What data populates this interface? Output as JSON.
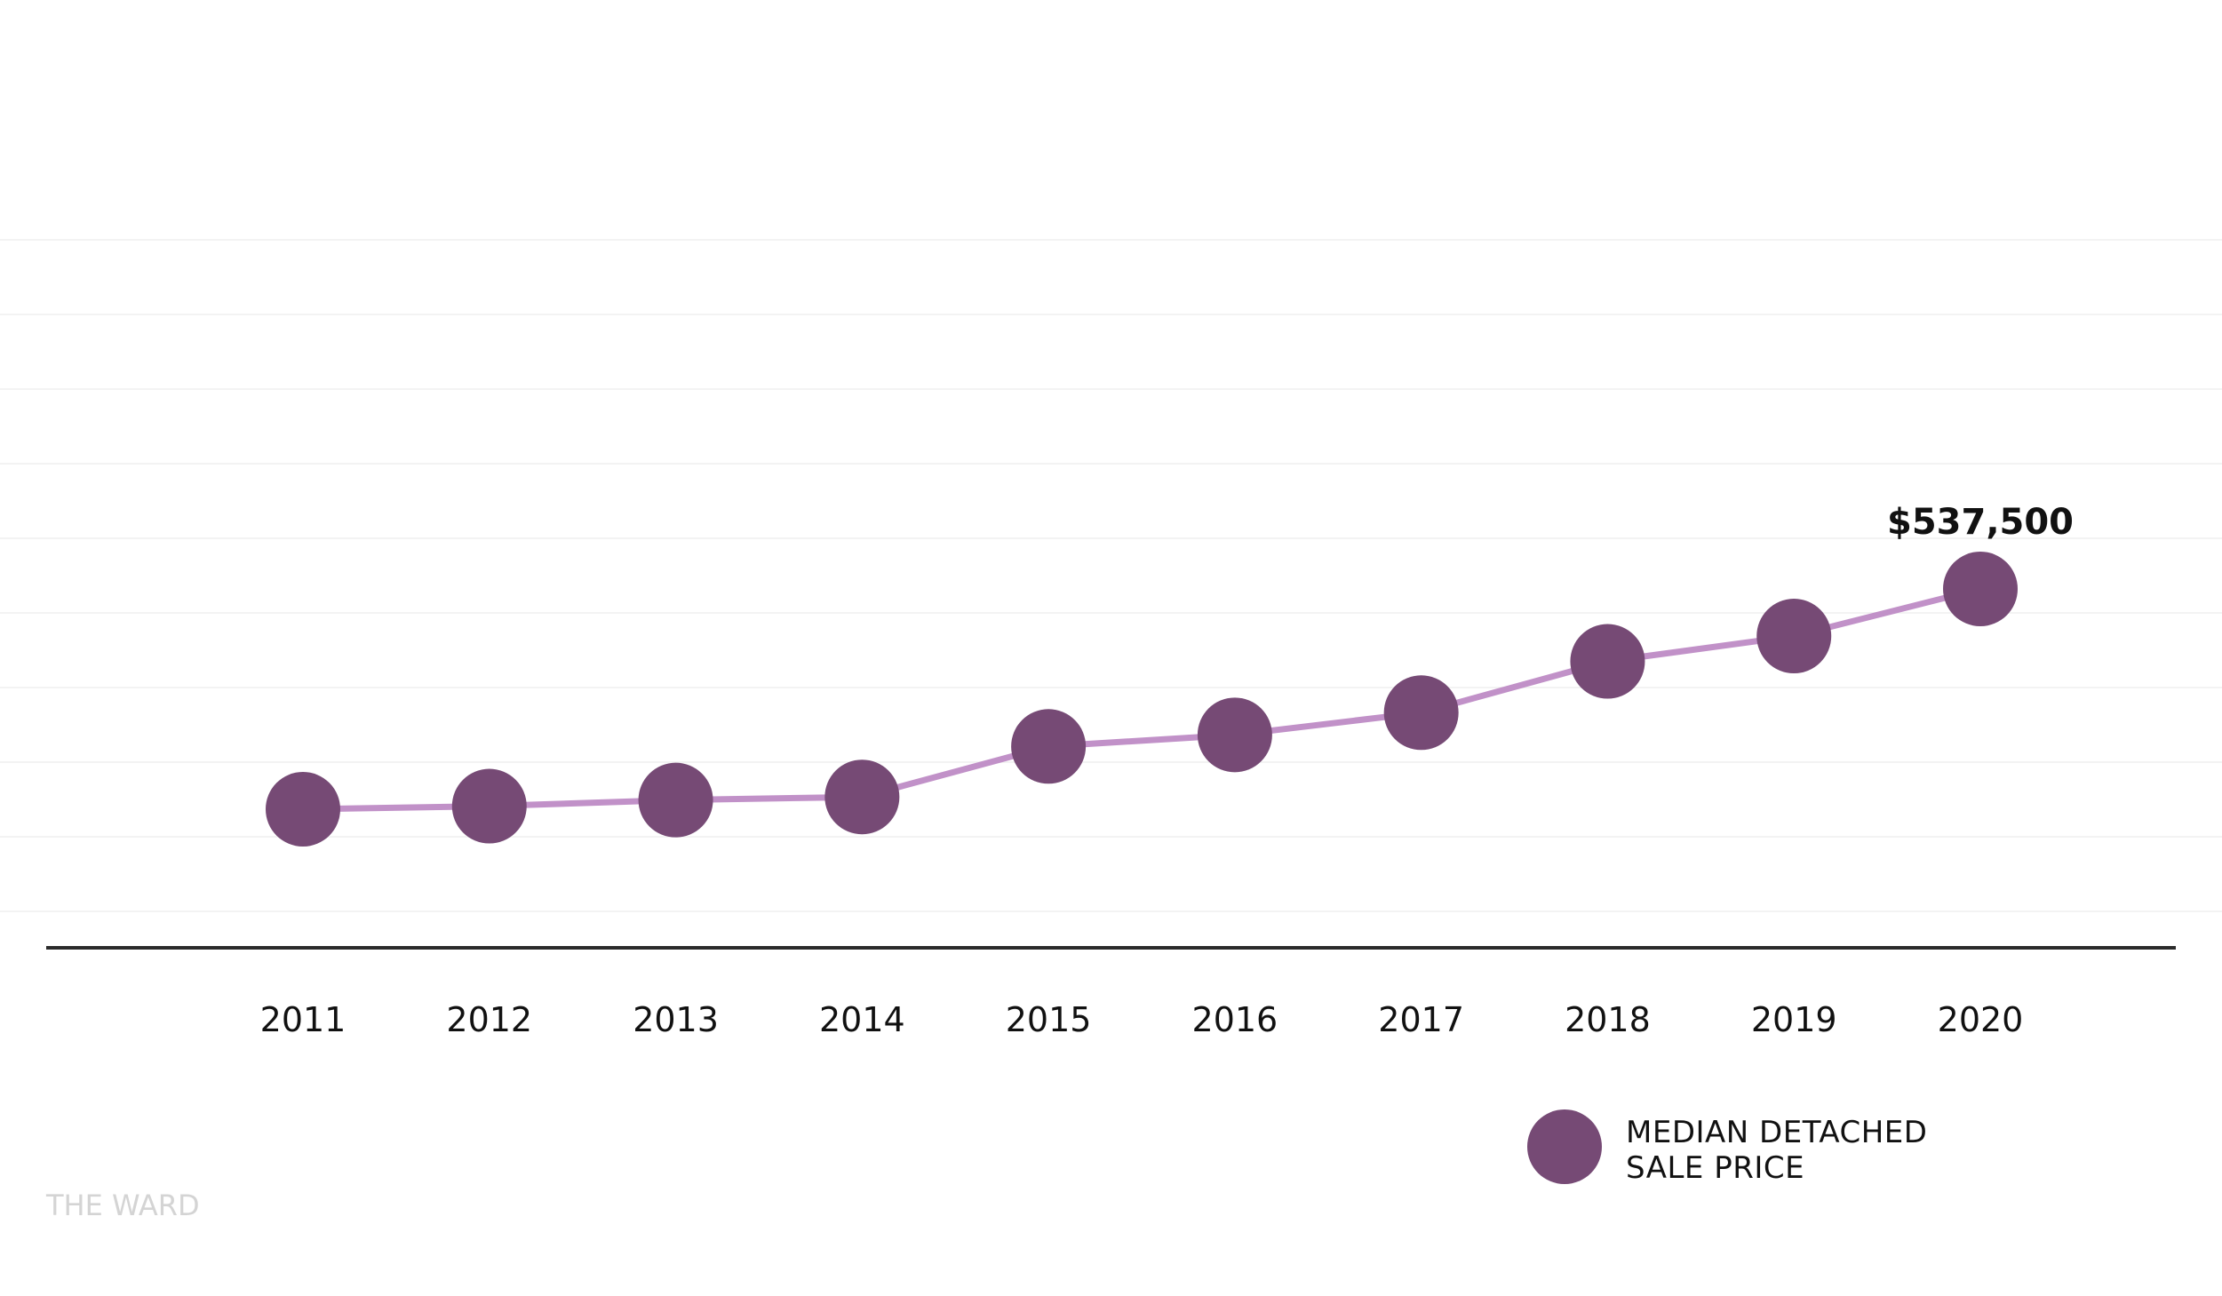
{
  "chart_data": {
    "type": "line",
    "categories": [
      "2011",
      "2012",
      "2013",
      "2014",
      "2015",
      "2016",
      "2017",
      "2018",
      "2019",
      "2020"
    ],
    "series": [
      {
        "name": "MEDIAN DETACHED SALE PRICE",
        "values": [
          250000,
          254000,
          262000,
          266000,
          332000,
          347000,
          376000,
          443000,
          476000,
          537500
        ]
      }
    ],
    "annotations": [
      {
        "category": "2020",
        "text": "$537,500"
      }
    ],
    "ylim": [
      0,
      1000000
    ],
    "grid": true,
    "legend_lines": [
      "MEDIAN DETACHED",
      "SALE PRICE"
    ],
    "legend_position": "bottom-right",
    "watermark": "THE WARD",
    "colors": {
      "marker": "#764a75",
      "line": "#c191c8",
      "grid": "#f3f3f3",
      "axis": "#2b2b2b"
    }
  }
}
